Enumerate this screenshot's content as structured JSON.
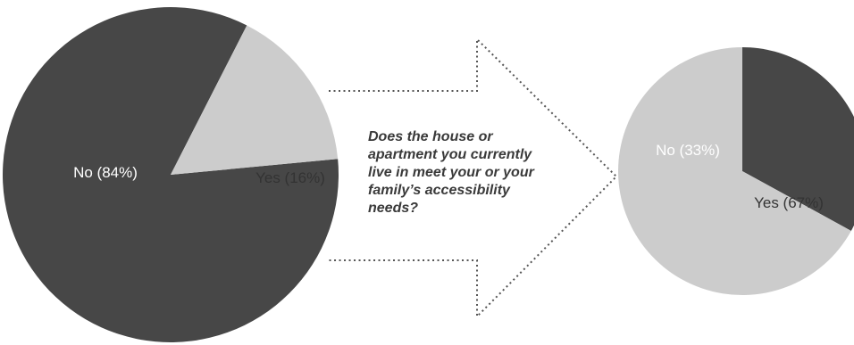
{
  "colors": {
    "no": "#474747",
    "yes": "#cccccc",
    "arrow_border": "#555555",
    "label_on_dark": "#ffffff",
    "label_on_light": "#333333"
  },
  "question": "Does the house or\napartment you currently\nlive in meet your or your\nfamily’s accessibility\nneeds?",
  "chart_data": [
    {
      "type": "pie",
      "title": "",
      "slices": [
        {
          "label": "No (84%)",
          "value": 84
        },
        {
          "label": "Yes (16%)",
          "value": 16
        }
      ]
    },
    {
      "type": "pie",
      "title": "",
      "slices": [
        {
          "label": "No (33%)",
          "value": 33
        },
        {
          "label": "Yes (67%)",
          "value": 67
        }
      ]
    }
  ]
}
